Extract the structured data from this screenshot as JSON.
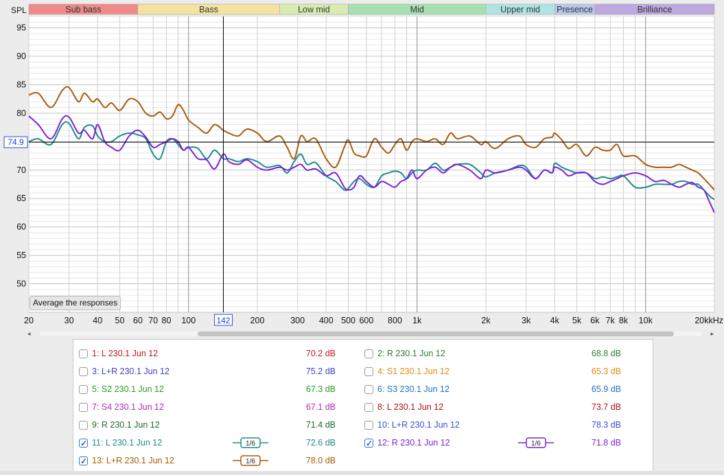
{
  "chart_data": {
    "type": "line",
    "y_axis_label": "SPL",
    "x_unit_label": "kHz",
    "x_scale": "log",
    "xlim": [
      20,
      20000
    ],
    "ylim": [
      45,
      97
    ],
    "grid": true,
    "y_ticks": [
      95,
      90,
      85,
      80,
      75,
      70,
      65,
      60,
      55,
      50
    ],
    "x_ticks": [
      {
        "v": 20,
        "t": "20"
      },
      {
        "v": 30,
        "t": "30"
      },
      {
        "v": 40,
        "t": "40"
      },
      {
        "v": 50,
        "t": "50"
      },
      {
        "v": 60,
        "t": "60"
      },
      {
        "v": 70,
        "t": "70"
      },
      {
        "v": 80,
        "t": "80"
      },
      {
        "v": 100,
        "t": "100"
      },
      {
        "v": 200,
        "t": "200"
      },
      {
        "v": 300,
        "t": "300"
      },
      {
        "v": 400,
        "t": "400"
      },
      {
        "v": 500,
        "t": "500"
      },
      {
        "v": 600,
        "t": "600"
      },
      {
        "v": 800,
        "t": "800"
      },
      {
        "v": 1000,
        "t": "1k"
      },
      {
        "v": 2000,
        "t": "2k"
      },
      {
        "v": 3000,
        "t": "3k"
      },
      {
        "v": 4000,
        "t": "4k"
      },
      {
        "v": 5000,
        "t": "5k"
      },
      {
        "v": 6000,
        "t": "6k"
      },
      {
        "v": 7000,
        "t": "7k"
      },
      {
        "v": 8000,
        "t": "8k"
      },
      {
        "v": 10000,
        "t": "10k"
      },
      {
        "v": 20000,
        "t": "20k"
      }
    ],
    "cursor": {
      "x": 142,
      "x_label": "142",
      "y": 74.9,
      "y_label": "74.9"
    },
    "bands": [
      {
        "name": "Sub bass",
        "from": 20,
        "to": 60,
        "color": "#f08a8a"
      },
      {
        "name": "Bass",
        "from": 60,
        "to": 250,
        "color": "#f5e2a0"
      },
      {
        "name": "Low mid",
        "from": 250,
        "to": 500,
        "color": "#d7ecb0"
      },
      {
        "name": "Mid",
        "from": 500,
        "to": 2000,
        "color": "#a6e0b0"
      },
      {
        "name": "Upper mid",
        "from": 2000,
        "to": 4000,
        "color": "#b0e4e4"
      },
      {
        "name": "Presence",
        "from": 4000,
        "to": 6000,
        "color": "#b8c8ec"
      },
      {
        "name": "Brilliance",
        "from": 6000,
        "to": 20000,
        "color": "#bda8e0"
      }
    ],
    "series": [
      {
        "name": "13: L+R 230.1 Jun 12",
        "color": "#a85a0a",
        "x": [
          20,
          22,
          25,
          28,
          30,
          33,
          35,
          38,
          40,
          43,
          46,
          50,
          55,
          60,
          65,
          70,
          75,
          80,
          85,
          90,
          95,
          100,
          110,
          120,
          130,
          142,
          150,
          165,
          180,
          200,
          220,
          250,
          270,
          290,
          310,
          330,
          360,
          400,
          440,
          480,
          500,
          530,
          560,
          600,
          650,
          700,
          750,
          800,
          850,
          900,
          950,
          1000,
          1100,
          1200,
          1300,
          1400,
          1500,
          1700,
          1900,
          2000,
          2200,
          2500,
          2800,
          3000,
          3300,
          3600,
          3900,
          4000,
          4300,
          4600,
          5000,
          5500,
          6000,
          6500,
          7000,
          7500,
          8000,
          9000,
          10000,
          11000,
          12000,
          13000,
          14000,
          15000,
          16000,
          17000,
          18000,
          19000,
          20000
        ],
        "y": [
          83.2,
          83.5,
          81.0,
          84.0,
          84.5,
          82.0,
          83.5,
          82.0,
          82.5,
          81.0,
          81.8,
          80.5,
          82.5,
          82.0,
          80.0,
          79.5,
          80.2,
          79.0,
          79.5,
          81.5,
          80.5,
          78.8,
          77.5,
          76.5,
          78.0,
          77.0,
          76.5,
          76.0,
          77.2,
          76.5,
          75.0,
          76.0,
          74.0,
          72.0,
          76.0,
          75.0,
          75.5,
          72.0,
          70.5,
          74.0,
          75.3,
          73.0,
          72.5,
          72.5,
          75.5,
          74.0,
          73.0,
          74.5,
          75.5,
          73.5,
          75.0,
          75.5,
          75.0,
          75.5,
          74.5,
          76.5,
          75.5,
          76.0,
          74.5,
          75.0,
          73.8,
          75.5,
          76.0,
          74.5,
          74.0,
          75.5,
          75.8,
          76.5,
          75.3,
          73.8,
          74.5,
          72.5,
          74.0,
          73.5,
          73.5,
          74.5,
          72.5,
          72.5,
          71.0,
          70.5,
          70.5,
          70.5,
          71.0,
          70.5,
          70.0,
          69.5,
          68.5,
          67.5,
          66.5
        ]
      },
      {
        "name": "11: L 230.1 Jun 12",
        "color": "#1e8a8a",
        "x": [
          20,
          22,
          25,
          28,
          30,
          33,
          35,
          38,
          40,
          43,
          46,
          50,
          55,
          60,
          65,
          70,
          75,
          80,
          85,
          90,
          95,
          100,
          110,
          120,
          130,
          142,
          150,
          165,
          180,
          200,
          220,
          250,
          270,
          290,
          310,
          330,
          360,
          400,
          440,
          480,
          500,
          530,
          560,
          600,
          650,
          700,
          750,
          800,
          850,
          900,
          950,
          1000,
          1100,
          1200,
          1300,
          1400,
          1500,
          1700,
          1900,
          2000,
          2200,
          2500,
          2800,
          3000,
          3300,
          3600,
          3900,
          4000,
          4300,
          4600,
          5000,
          5500,
          6000,
          6500,
          7000,
          7500,
          8000,
          9000,
          10000,
          11000,
          12000,
          13000,
          14000,
          15000,
          16000,
          17000,
          18000,
          19000,
          20000
        ],
        "y": [
          75.0,
          75.5,
          74.5,
          78.0,
          78.2,
          75.5,
          77.5,
          77.8,
          76.0,
          75.0,
          75.0,
          76.0,
          76.5,
          76.2,
          75.5,
          72.8,
          72.0,
          75.0,
          75.5,
          74.5,
          73.5,
          74.0,
          73.8,
          72.0,
          73.5,
          72.0,
          72.0,
          71.5,
          72.0,
          71.5,
          70.5,
          70.8,
          69.5,
          71.5,
          72.8,
          71.0,
          71.3,
          69.0,
          68.0,
          66.5,
          66.8,
          68.0,
          68.5,
          67.5,
          67.0,
          69.0,
          69.5,
          69.8,
          69.5,
          68.5,
          69.5,
          70.0,
          70.0,
          71.2,
          70.0,
          70.5,
          71.0,
          71.0,
          69.5,
          68.8,
          69.5,
          70.0,
          70.8,
          70.5,
          68.5,
          70.0,
          69.5,
          71.2,
          70.5,
          70.0,
          69.5,
          69.5,
          68.5,
          68.8,
          68.5,
          68.8,
          69.0,
          67.0,
          67.0,
          67.5,
          67.5,
          67.5,
          68.0,
          68.0,
          67.5,
          67.5,
          66.5,
          65.5,
          64.8
        ]
      },
      {
        "name": "12: R 230.1 Jun 12",
        "color": "#7a22d6",
        "x": [
          20,
          22,
          25,
          28,
          30,
          33,
          35,
          38,
          40,
          43,
          46,
          50,
          55,
          60,
          65,
          70,
          75,
          80,
          85,
          90,
          95,
          100,
          110,
          120,
          130,
          142,
          150,
          165,
          180,
          200,
          220,
          250,
          270,
          290,
          310,
          330,
          360,
          400,
          440,
          480,
          500,
          530,
          560,
          600,
          650,
          700,
          750,
          800,
          850,
          900,
          950,
          1000,
          1100,
          1200,
          1300,
          1400,
          1500,
          1700,
          1900,
          2000,
          2200,
          2500,
          2800,
          3000,
          3300,
          3600,
          3900,
          4000,
          4300,
          4600,
          5000,
          5500,
          6000,
          6500,
          7000,
          7500,
          8000,
          9000,
          10000,
          11000,
          12000,
          13000,
          14000,
          15000,
          16000,
          17000,
          18000,
          19000,
          20000
        ],
        "y": [
          79.5,
          78.0,
          75.5,
          79.0,
          79.3,
          76.5,
          77.0,
          75.5,
          78.0,
          75.0,
          74.0,
          73.5,
          76.0,
          77.0,
          75.8,
          74.0,
          74.5,
          75.0,
          75.5,
          75.0,
          73.5,
          74.0,
          72.0,
          71.8,
          70.2,
          72.8,
          71.5,
          71.0,
          71.8,
          70.5,
          70.0,
          70.5,
          70.0,
          70.5,
          71.0,
          70.0,
          70.2,
          69.0,
          69.5,
          67.0,
          66.5,
          67.0,
          69.0,
          68.0,
          67.0,
          68.0,
          67.5,
          67.0,
          68.0,
          68.5,
          70.0,
          68.5,
          70.0,
          70.5,
          69.5,
          70.5,
          71.0,
          70.0,
          68.5,
          70.0,
          69.5,
          70.0,
          70.5,
          70.0,
          68.5,
          70.0,
          69.5,
          70.5,
          70.0,
          69.0,
          69.5,
          69.5,
          68.0,
          67.5,
          68.0,
          68.5,
          69.0,
          69.5,
          69.0,
          68.0,
          68.2,
          67.5,
          67.0,
          67.5,
          67.8,
          67.0,
          66.5,
          64.5,
          62.5
        ]
      }
    ]
  },
  "buttons": {
    "average": "Average the responses"
  },
  "legend": {
    "items": [
      {
        "label": "1: L 230.1 Jun 12",
        "value": "70.2 dB",
        "color": "#c01818",
        "checked": false
      },
      {
        "label": "2: R 230.1 Jun 12",
        "value": "68.8 dB",
        "color": "#2e7d32",
        "checked": false
      },
      {
        "label": "3: L+R 230.1 Jun 12",
        "value": "75.2 dB",
        "color": "#3a3fbf",
        "checked": false
      },
      {
        "label": "4: S1 230.1 Jun 12",
        "value": "65.3 dB",
        "color": "#e08a10",
        "checked": false
      },
      {
        "label": "5: S2 230.1 Jun 12",
        "value": "67.3 dB",
        "color": "#2a9a2a",
        "checked": false
      },
      {
        "label": "6: S3 230.1 Jun 12",
        "value": "65.9 dB",
        "color": "#1e70c0",
        "checked": false
      },
      {
        "label": "7: S4 230.1 Jun 12",
        "value": "67.1 dB",
        "color": "#b02ab8",
        "checked": false
      },
      {
        "label": "8: L 230.1 Jun 12",
        "value": "73.7 dB",
        "color": "#b01010",
        "checked": false
      },
      {
        "label": "9: R 230.1 Jun 12",
        "value": "71.4 dB",
        "color": "#1e6a2a",
        "checked": false
      },
      {
        "label": "10: L+R 230.1 Jun 12",
        "value": "78.3 dB",
        "color": "#3a4fd0",
        "checked": false
      },
      {
        "label": "11: L 230.1 Jun 12",
        "value": "72.6 dB",
        "color": "#1e8a8a",
        "checked": true,
        "smoothing": "1/6"
      },
      {
        "label": "12: R 230.1 Jun 12",
        "value": "71.8 dB",
        "color": "#7a22d6",
        "checked": true,
        "smoothing": "1/6"
      },
      {
        "label": "13: L+R 230.1 Jun 12",
        "value": "78.0 dB",
        "color": "#a85a0a",
        "checked": true,
        "smoothing": "1/6"
      }
    ]
  },
  "scrollbar": {
    "left_arrow": "◂",
    "right_arrow": "▸"
  }
}
